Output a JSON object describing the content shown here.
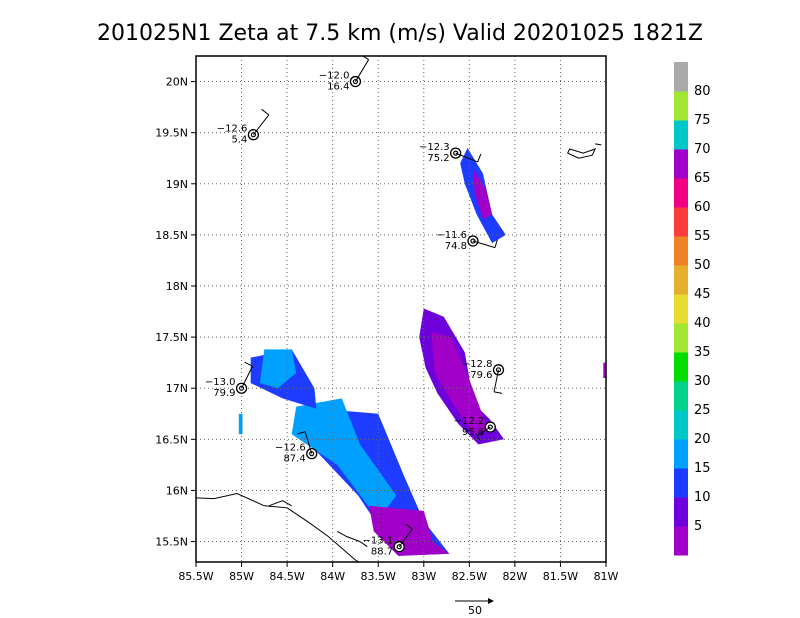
{
  "chart_data": {
    "type": "map",
    "title": "201025N1  Zeta at 7.5 km (m/s)  Valid 20201025  1821Z",
    "xlim": [
      -85.5,
      -81.0
    ],
    "ylim": [
      15.3,
      20.25
    ],
    "x_ticks": [
      -85.5,
      -85.0,
      -84.5,
      -84.0,
      -83.5,
      -83.0,
      -82.5,
      -82.0,
      -81.5,
      -81.0
    ],
    "x_tick_labels": [
      "85.5W",
      "85W",
      "84.5W",
      "84W",
      "83.5W",
      "83W",
      "82.5W",
      "82W",
      "81.5W",
      "81W"
    ],
    "y_ticks": [
      15.5,
      16.0,
      16.5,
      17.0,
      17.5,
      18.0,
      18.5,
      19.0,
      19.5,
      20.0
    ],
    "y_tick_labels": [
      "15.5N",
      "16N",
      "16.5N",
      "17N",
      "17.5N",
      "18N",
      "18.5N",
      "19N",
      "19.5N",
      "20N"
    ],
    "grid": true,
    "colorbar": {
      "labels": [
        "5",
        "10",
        "15",
        "20",
        "25",
        "30",
        "35",
        "40",
        "45",
        "50",
        "55",
        "60",
        "65",
        "70",
        "75",
        "80"
      ],
      "colors": [
        "#a000c8",
        "#6e00dc",
        "#1e3cff",
        "#00a0ff",
        "#00c8c8",
        "#00d28c",
        "#00dc00",
        "#a0e632",
        "#e6dc32",
        "#e6af2d",
        "#f08228",
        "#fa3c3c",
        "#f00082",
        "#a000c8",
        "#00c8c8",
        "#a0e632",
        "#aaaaaa"
      ]
    },
    "reference_vector": {
      "label": "50"
    },
    "stations": [
      {
        "lon": -83.75,
        "lat": 20.0,
        "upper": "−12.0",
        "lower": "16.4"
      },
      {
        "lon": -84.87,
        "lat": 19.48,
        "upper": "−12.6",
        "lower": "5.4"
      },
      {
        "lon": -82.65,
        "lat": 19.3,
        "upper": "−12.3",
        "lower": "75.2"
      },
      {
        "lon": -82.46,
        "lat": 18.44,
        "upper": "−11.6",
        "lower": "74.8"
      },
      {
        "lon": -85.0,
        "lat": 17.0,
        "upper": "−13.0",
        "lower": "79.9"
      },
      {
        "lon": -82.18,
        "lat": 17.18,
        "upper": "−12.8",
        "lower": "79.6"
      },
      {
        "lon": -82.27,
        "lat": 16.62,
        "upper": "−12.2",
        "lower": "95.6"
      },
      {
        "lon": -84.23,
        "lat": 16.36,
        "upper": "−12.6",
        "lower": "87.4"
      },
      {
        "lon": -83.27,
        "lat": 15.45,
        "upper": "−13.1",
        "lower": "88.7"
      }
    ]
  }
}
